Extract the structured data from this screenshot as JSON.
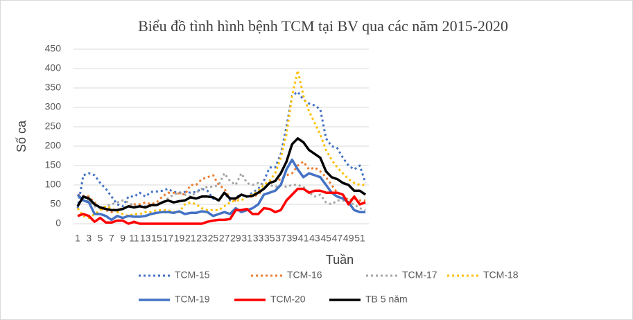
{
  "chart_data": {
    "type": "line",
    "title": "Biểu đồ tình hình bệnh TCM tại BV qua các năm 2015-2020",
    "xlabel": "Tuần",
    "ylabel": "Số ca",
    "categories": [
      1,
      null,
      3,
      null,
      5,
      null,
      7,
      null,
      9,
      null,
      11,
      null,
      13,
      null,
      15,
      null,
      17,
      null,
      19,
      null,
      21,
      null,
      23,
      null,
      25,
      null,
      27,
      null,
      29,
      null,
      31,
      null,
      33,
      null,
      35,
      null,
      37,
      null,
      39,
      null,
      41,
      null,
      43,
      null,
      45,
      null,
      47,
      null,
      49,
      null,
      51,
      null
    ],
    "ylim": [
      0,
      450
    ],
    "yticks": [
      0,
      50,
      100,
      150,
      200,
      250,
      300,
      350,
      400,
      450
    ],
    "grid": true,
    "legend": "bottom",
    "series": [
      {
        "name": "TCM-15",
        "color": "#4472c4",
        "style": "dotted",
        "values": [
          40,
          125,
          130,
          125,
          105,
          90,
          70,
          50,
          45,
          70,
          70,
          80,
          70,
          82,
          83,
          85,
          90,
          82,
          80,
          82,
          80,
          82,
          90,
          85,
          65,
          60,
          80,
          60,
          68,
          75,
          70,
          80,
          90,
          110,
          145,
          145,
          180,
          250,
          330,
          340,
          320,
          310,
          305,
          295,
          220,
          200,
          195,
          170,
          150,
          140,
          150,
          105
        ]
      },
      {
        "name": "TCM-16",
        "color": "#ed7d31",
        "style": "dotted",
        "values": [
          75,
          72,
          70,
          55,
          40,
          35,
          30,
          35,
          40,
          45,
          50,
          50,
          55,
          50,
          55,
          70,
          80,
          80,
          78,
          75,
          100,
          100,
          115,
          120,
          125,
          100,
          90,
          65,
          60,
          75,
          70,
          70,
          75,
          90,
          105,
          110,
          115,
          125,
          130,
          150,
          160,
          140,
          145,
          135,
          120,
          100,
          80,
          75,
          60,
          65,
          60,
          60
        ]
      },
      {
        "name": "TCM-17",
        "color": "#a5a5a5",
        "style": "dotted",
        "values": [
          70,
          65,
          60,
          45,
          40,
          45,
          50,
          55,
          60,
          55,
          45,
          45,
          45,
          45,
          50,
          55,
          65,
          75,
          80,
          75,
          70,
          80,
          90,
          95,
          95,
          100,
          130,
          110,
          100,
          130,
          105,
          100,
          105,
          100,
          100,
          95,
          100,
          95,
          100,
          100,
          95,
          80,
          70,
          75,
          55,
          50,
          60,
          60,
          55,
          50,
          40,
          35
        ]
      },
      {
        "name": "TCM-18",
        "color": "#ffc000",
        "style": "dotted",
        "values": [
          40,
          20,
          15,
          25,
          35,
          45,
          40,
          30,
          25,
          20,
          25,
          25,
          30,
          30,
          35,
          35,
          35,
          30,
          30,
          50,
          55,
          50,
          40,
          35,
          35,
          35,
          45,
          55,
          60,
          60,
          70,
          75,
          85,
          100,
          110,
          130,
          170,
          230,
          330,
          395,
          330,
          290,
          260,
          230,
          190,
          165,
          145,
          130,
          115,
          105,
          100,
          100
        ]
      },
      {
        "name": "TCM-19",
        "color": "#4472c4",
        "style": "solid",
        "values": [
          75,
          60,
          55,
          25,
          25,
          20,
          10,
          20,
          15,
          20,
          18,
          18,
          20,
          25,
          28,
          30,
          30,
          28,
          32,
          25,
          28,
          28,
          32,
          30,
          20,
          25,
          30,
          25,
          40,
          30,
          35,
          40,
          50,
          75,
          80,
          85,
          100,
          140,
          165,
          140,
          120,
          130,
          125,
          120,
          100,
          80,
          70,
          65,
          55,
          35,
          30,
          30
        ]
      },
      {
        "name": "TCM-20",
        "color": "#ff0000",
        "style": "solid",
        "values": [
          20,
          25,
          20,
          5,
          15,
          3,
          3,
          8,
          8,
          0,
          5,
          0,
          0,
          0,
          0,
          0,
          0,
          0,
          0,
          0,
          0,
          0,
          0,
          5,
          8,
          10,
          10,
          12,
          35,
          35,
          38,
          25,
          25,
          40,
          38,
          30,
          35,
          60,
          75,
          90,
          90,
          80,
          85,
          85,
          80,
          80,
          80,
          75,
          50,
          70,
          50,
          55
        ]
      },
      {
        "name": "TB 5 năm",
        "color": "#000000",
        "style": "solid",
        "values": [
          45,
          70,
          65,
          50,
          42,
          38,
          35,
          35,
          38,
          45,
          42,
          45,
          42,
          48,
          48,
          55,
          60,
          55,
          58,
          60,
          68,
          65,
          70,
          70,
          68,
          60,
          80,
          65,
          65,
          75,
          70,
          72,
          80,
          90,
          105,
          110,
          130,
          160,
          205,
          220,
          210,
          190,
          180,
          170,
          135,
          120,
          115,
          105,
          100,
          85,
          85,
          75
        ]
      }
    ]
  }
}
